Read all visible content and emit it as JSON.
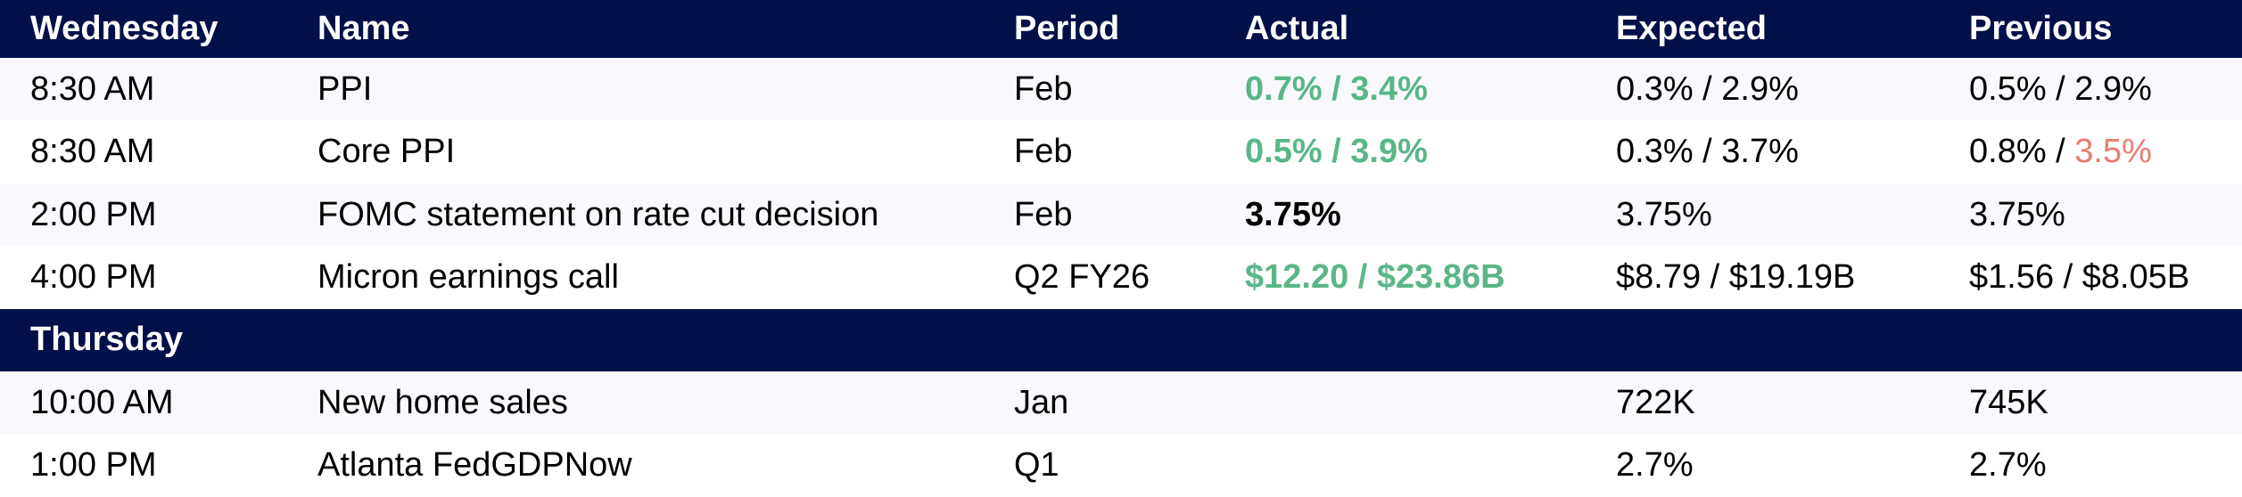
{
  "colors": {
    "header_bg": "#02104a",
    "row_alt_bg": "#f8f8fd",
    "row_bg": "#ffffff",
    "header_text": "#ffffff",
    "body_text": "#000000",
    "positive": "#5ab687",
    "negative": "#e87d72"
  },
  "table": {
    "headers": [
      "Wednesday",
      "Name",
      "Period",
      "Actual",
      "Expected",
      "Previous"
    ],
    "rows": [
      {
        "time": "8:30 AM",
        "name": "PPI",
        "period": "Feb",
        "actual": [
          {
            "t": "0.7% / 3.4%",
            "c": "green",
            "b": true
          }
        ],
        "expected": [
          {
            "t": "0.3% / 2.9%"
          }
        ],
        "previous": [
          {
            "t": "0.5% / 2.9%"
          }
        ]
      },
      {
        "time": "8:30 AM",
        "name": "Core PPI",
        "period": "Feb",
        "actual": [
          {
            "t": "0.5% / 3.9%",
            "c": "green",
            "b": true
          }
        ],
        "expected": [
          {
            "t": "0.3% / 3.7%"
          }
        ],
        "previous": [
          {
            "t": "0.8% / "
          },
          {
            "t": "3.5%",
            "c": "red"
          }
        ]
      },
      {
        "time": "2:00 PM",
        "name": "FOMC statement on rate cut decision",
        "period": "Feb",
        "actual": [
          {
            "t": "3.75%",
            "b": true
          }
        ],
        "expected": [
          {
            "t": "3.75%"
          }
        ],
        "previous": [
          {
            "t": "3.75%"
          }
        ]
      },
      {
        "time": "4:00 PM",
        "name": "Micron earnings call",
        "period": "Q2 FY26",
        "actual": [
          {
            "t": "$12.20 / $23.86B",
            "c": "green",
            "b": true
          }
        ],
        "expected": [
          {
            "t": "$8.79 / $19.19B"
          }
        ],
        "previous": [
          {
            "t": "$1.56 / $8.05B"
          }
        ]
      },
      {
        "type": "section",
        "label": "Thursday"
      },
      {
        "time": "10:00 AM",
        "name": "New home sales",
        "period": "Jan",
        "actual": [],
        "expected": [
          {
            "t": "722K"
          }
        ],
        "previous": [
          {
            "t": "745K"
          }
        ]
      },
      {
        "time": "1:00 PM",
        "name": "Atlanta FedGDPNow",
        "period": "Q1",
        "actual": [],
        "expected": [
          {
            "t": "2.7%"
          }
        ],
        "previous": [
          {
            "t": "2.7%"
          }
        ]
      }
    ]
  }
}
